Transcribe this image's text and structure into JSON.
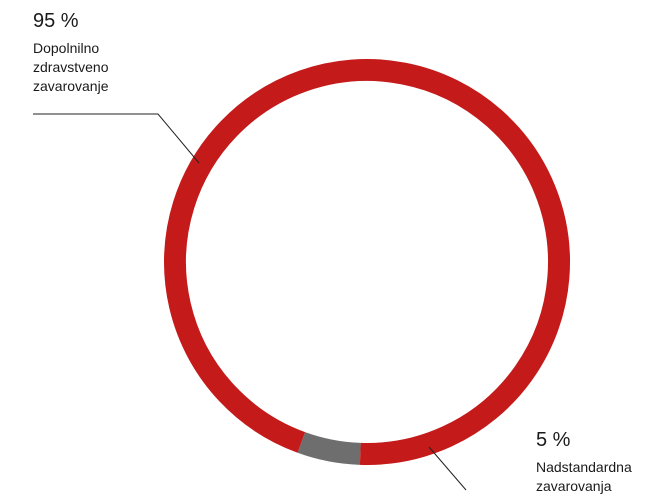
{
  "chart_data": {
    "type": "pie",
    "variant": "donut",
    "title": "",
    "slices": [
      {
        "label": "Dopolnilno zdravstveno zavarovanje",
        "value": 95,
        "value_label": "95 %",
        "color": "#c41a1a"
      },
      {
        "label": "Nadstandardna zavarovanja",
        "value": 5,
        "value_label": "5 %",
        "color": "#6e6e6e"
      }
    ]
  }
}
